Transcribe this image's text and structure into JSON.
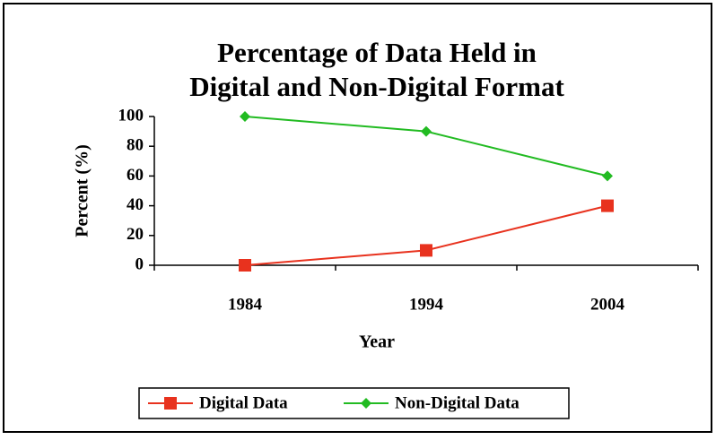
{
  "chart_data": {
    "type": "line",
    "title": [
      "Percentage of Data Held in",
      "Digital and Non-Digital Format"
    ],
    "x_label": "Year",
    "y_label": "Percent (%)",
    "categories": [
      "1984",
      "1994",
      "2004"
    ],
    "series": [
      {
        "name": "Digital Data",
        "color": "#e8321e",
        "marker": "square",
        "values": [
          0,
          10,
          40
        ]
      },
      {
        "name": "Non-Digital Data",
        "color": "#22bb22",
        "marker": "diamond",
        "values": [
          100,
          90,
          60
        ]
      }
    ],
    "ylim": [
      0,
      100
    ],
    "yticks": [
      0,
      20,
      40,
      60,
      80,
      100
    ],
    "grid": false,
    "legend": "bottom"
  }
}
